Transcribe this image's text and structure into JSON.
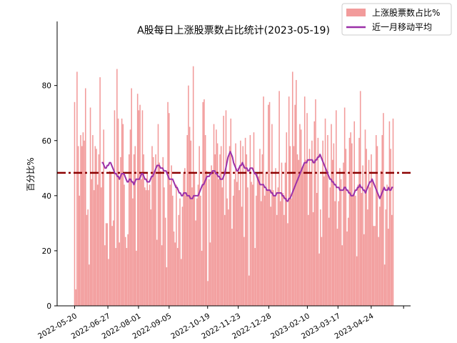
{
  "chart_data": {
    "type": "bar",
    "title": "A股每日上涨股票数占比统计(2023-05-19)",
    "xlabel": "",
    "ylabel": "百分比%",
    "ylim": [
      0,
      96
    ],
    "yticks": [
      0,
      20,
      40,
      60,
      80
    ],
    "xticks": [
      "2022-05-20",
      "2022-06-27",
      "2022-08-01",
      "2022-09-05",
      "2022-10-19",
      "2022-11-23",
      "2022-12-28",
      "2023-02-10",
      "2023-03-17",
      "2023-04-24"
    ],
    "grid": false,
    "legend_position": "top-right",
    "colors": {
      "bars": "#f29b9b",
      "moving_average": "#9b30a8",
      "mean_line": "#8b0000"
    },
    "series": [
      {
        "name": "上涨股票数占比%",
        "kind": "bar",
        "values": [
          74,
          6,
          85,
          58,
          40,
          62,
          58,
          63,
          60,
          79,
          33,
          35,
          15,
          72,
          46,
          62,
          42,
          58,
          57,
          44,
          55,
          83,
          43,
          48,
          64,
          22,
          30,
          30,
          17,
          49,
          48,
          29,
          31,
          71,
          21,
          86,
          68,
          23,
          54,
          68,
          66,
          44,
          25,
          21,
          26,
          55,
          64,
          79,
          39,
          55,
          58,
          20,
          77,
          71,
          73,
          46,
          71,
          55,
          43,
          42,
          48,
          42,
          44,
          35,
          58,
          54,
          49,
          55,
          24,
          66,
          52,
          49,
          22,
          54,
          43,
          32,
          14,
          74,
          70,
          44,
          51,
          40,
          27,
          23,
          44,
          21,
          33,
          39,
          17,
          36,
          48,
          50,
          40,
          62,
          80,
          65,
          60,
          43,
          87,
          48,
          31,
          39,
          44,
          58,
          40,
          20,
          74,
          75,
          62,
          49,
          9,
          46,
          23,
          51,
          48,
          66,
          55,
          64,
          59,
          46,
          55,
          58,
          43,
          69,
          33,
          71,
          39,
          35,
          58,
          68,
          28,
          40,
          46,
          59,
          45,
          50,
          42,
          60,
          36,
          58,
          25,
          61,
          55,
          43,
          11,
          62,
          45,
          44,
          63,
          21,
          40,
          48,
          47,
          57,
          38,
          55,
          76,
          40,
          48,
          42,
          73,
          74,
          36,
          66,
          42,
          40,
          50,
          33,
          43,
          78,
          38,
          52,
          41,
          33,
          52,
          63,
          30,
          76,
          58,
          39,
          85,
          58,
          73,
          82,
          55,
          53,
          66,
          64,
          50,
          51,
          76,
          53,
          70,
          33,
          57,
          48,
          60,
          34,
          67,
          75,
          41,
          61,
          19,
          35,
          25,
          60,
          47,
          68,
          48,
          62,
          32,
          43,
          66,
          53,
          59,
          38,
          71,
          28,
          38,
          50,
          46,
          22,
          52,
          72,
          57,
          27,
          32,
          61,
          63,
          59,
          40,
          67,
          40,
          18,
          44,
          61,
          78,
          41,
          51,
          26,
          64,
          57,
          35,
          53,
          43,
          55,
          46,
          29,
          29,
          62,
          58,
          25,
          36,
          49,
          62,
          70,
          15,
          35,
          44,
          28,
          67,
          57,
          33,
          68
        ],
        "x_range": [
          "2022-05-20",
          "2023-05-19"
        ]
      },
      {
        "name": "近一月移动平均",
        "kind": "line",
        "values": [
          52,
          52,
          51,
          50,
          50,
          51,
          51,
          52,
          52,
          51,
          50,
          49,
          48,
          48,
          47,
          47,
          46,
          47,
          48,
          48,
          48,
          47,
          46,
          45,
          45,
          46,
          46,
          45,
          45,
          44,
          45,
          46,
          46,
          46,
          46,
          47,
          48,
          48,
          47,
          46,
          46,
          45,
          45,
          45,
          46,
          47,
          47,
          48,
          49,
          50,
          51,
          51,
          51,
          50,
          50,
          50,
          49,
          49,
          49,
          48,
          47,
          46,
          46,
          46,
          46,
          45,
          44,
          43,
          43,
          42,
          41,
          41,
          40,
          40,
          41,
          41,
          41,
          40,
          40,
          40,
          39,
          39,
          39,
          40,
          40,
          40,
          40,
          40,
          41,
          42,
          43,
          44,
          44,
          45,
          46,
          47,
          47,
          47,
          48,
          48,
          49,
          49,
          49,
          48,
          48,
          47,
          47,
          46,
          46,
          46,
          47,
          48,
          50,
          52,
          54,
          55,
          56,
          55,
          54,
          52,
          51,
          50,
          49,
          49,
          50,
          51,
          51,
          52,
          51,
          50,
          50,
          50,
          49,
          49,
          50,
          50,
          50,
          49,
          48,
          48,
          47,
          46,
          45,
          44,
          44,
          44,
          44,
          43,
          43,
          42,
          42,
          42,
          42,
          41,
          41,
          40,
          40,
          40,
          41,
          41,
          41,
          41,
          41,
          40,
          40,
          39,
          39,
          38,
          38,
          39,
          39,
          40,
          41,
          42,
          43,
          44,
          45,
          46,
          47,
          48,
          49,
          50,
          51,
          52,
          52,
          52,
          53,
          53,
          53,
          53,
          53,
          52,
          52,
          53,
          53,
          54,
          54,
          55,
          54,
          53,
          52,
          51,
          50,
          49,
          48,
          47,
          46,
          46,
          45,
          45,
          44,
          44,
          43,
          43,
          43,
          42,
          42,
          42,
          42,
          43,
          43,
          42,
          42,
          41,
          41,
          40,
          40,
          40,
          41,
          42,
          42,
          43,
          43,
          44,
          43,
          43,
          42,
          42,
          41,
          42,
          43,
          44,
          45,
          45,
          46,
          45,
          44,
          43,
          42,
          41,
          40,
          39,
          40,
          41,
          42,
          43,
          42,
          42,
          42,
          43,
          42,
          42,
          43,
          43
        ],
        "x_range": [
          "2022-06-20",
          "2023-05-19"
        ]
      },
      {
        "name": "",
        "kind": "hline",
        "value": 48.3
      }
    ]
  }
}
